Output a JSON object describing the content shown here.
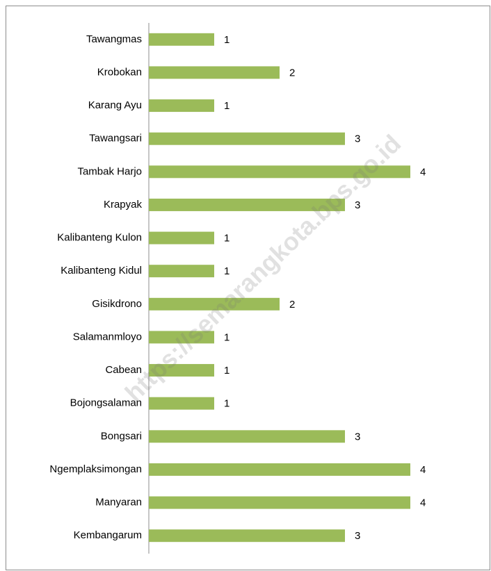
{
  "chart_data": {
    "type": "barh",
    "categories": [
      "Tawangmas",
      "Krobokan",
      "Karang Ayu",
      "Tawangsari",
      "Tambak Harjo",
      "Krapyak",
      "Kalibanteng Kulon",
      "Kalibanteng Kidul",
      "Gisikdrono",
      "Salamanmloyo",
      "Cabean",
      "Bojongsalaman",
      "Bongsari",
      "Ngemplaksimongan",
      "Manyaran",
      "Kembangarum"
    ],
    "values": [
      1,
      2,
      1,
      3,
      4,
      3,
      1,
      1,
      2,
      1,
      1,
      1,
      3,
      4,
      4,
      3
    ],
    "color": "#9bbb59",
    "xlim": [
      0,
      5
    ],
    "annotations": [
      "https://semarangkota.bps.go.id"
    ]
  }
}
